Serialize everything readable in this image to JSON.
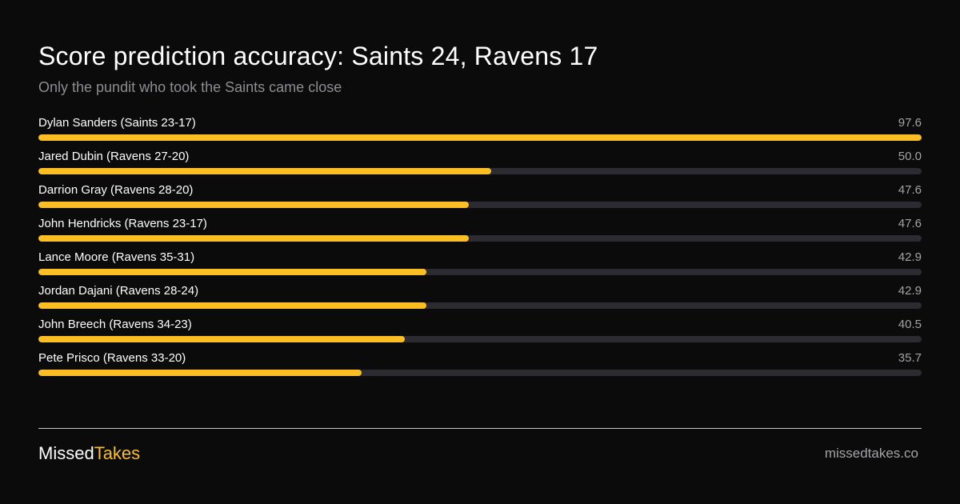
{
  "chart_data": {
    "type": "bar",
    "orientation": "horizontal",
    "title": "Score prediction accuracy: Saints 24, Ravens 17",
    "subtitle": "Only the pundit who took the Saints came close",
    "categories": [
      "Dylan Sanders (Saints 23-17)",
      "Jared Dubin (Ravens 27-20)",
      "Darrion Gray (Ravens 28-20)",
      "John Hendricks (Ravens 23-17)",
      "Lance Moore (Ravens 35-31)",
      "Jordan Dajani (Ravens 28-24)",
      "John Breech (Ravens 34-23)",
      "Pete Prisco (Ravens 33-20)"
    ],
    "values": [
      97.6,
      50.0,
      47.6,
      47.6,
      42.9,
      42.9,
      40.5,
      35.7
    ],
    "value_labels": [
      "97.6",
      "50.0",
      "47.6",
      "47.6",
      "42.9",
      "42.9",
      "40.5",
      "35.7"
    ],
    "xlim": [
      0,
      97.6
    ],
    "grid": false,
    "legend": "none"
  },
  "colors": {
    "background": "#0b0b0b",
    "bar_fill": "#fbbf24",
    "bar_track": "#2c2b31",
    "divider": "#f0c457",
    "muted_text": "#a3a3a8"
  },
  "footer": {
    "brand_part1": "Missed",
    "brand_part2": "Takes",
    "site": "missedtakes.co"
  }
}
